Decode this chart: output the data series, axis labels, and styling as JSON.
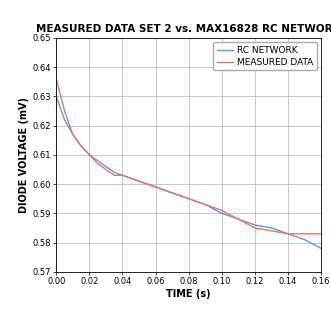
{
  "title": "MEASURED DATA SET 2 vs. MAX16828 RC NETWORK",
  "xlabel": "TIME (s)",
  "ylabel": "DIODE VOLTAGE (mV)",
  "xlim": [
    0.0,
    0.16
  ],
  "ylim": [
    0.57,
    0.65
  ],
  "xticks": [
    0.0,
    0.02,
    0.04,
    0.06,
    0.08,
    0.1,
    0.12,
    0.14,
    0.16
  ],
  "yticks": [
    0.57,
    0.58,
    0.59,
    0.6,
    0.61,
    0.62,
    0.63,
    0.64,
    0.65
  ],
  "rc_network_color": "#5b9bd5",
  "measured_data_color": "#e8746a",
  "background_color": "#ffffff",
  "grid_color": "#b0b0b0",
  "rc_network": {
    "x": [
      0.0,
      0.005,
      0.01,
      0.015,
      0.02,
      0.025,
      0.03,
      0.035,
      0.04,
      0.05,
      0.06,
      0.07,
      0.08,
      0.09,
      0.1,
      0.11,
      0.12,
      0.13,
      0.14,
      0.15,
      0.16
    ],
    "y": [
      0.63,
      0.622,
      0.617,
      0.613,
      0.61,
      0.608,
      0.606,
      0.604,
      0.603,
      0.601,
      0.599,
      0.597,
      0.595,
      0.593,
      0.59,
      0.588,
      0.586,
      0.585,
      0.583,
      0.581,
      0.578
    ]
  },
  "measured_data": {
    "x": [
      0.0,
      0.005,
      0.01,
      0.015,
      0.02,
      0.025,
      0.03,
      0.035,
      0.04,
      0.05,
      0.06,
      0.07,
      0.08,
      0.09,
      0.1,
      0.11,
      0.12,
      0.13,
      0.14,
      0.15,
      0.16
    ],
    "y": [
      0.636,
      0.625,
      0.617,
      0.613,
      0.61,
      0.607,
      0.605,
      0.603,
      0.603,
      0.601,
      0.599,
      0.597,
      0.595,
      0.593,
      0.591,
      0.588,
      0.585,
      0.584,
      0.583,
      0.583,
      0.583
    ]
  },
  "legend_labels": [
    "RC NETWORK",
    "MEASURED DATA"
  ],
  "title_fontsize": 7.5,
  "label_fontsize": 7,
  "tick_fontsize": 6,
  "legend_fontsize": 6.5,
  "linewidth": 1.0
}
